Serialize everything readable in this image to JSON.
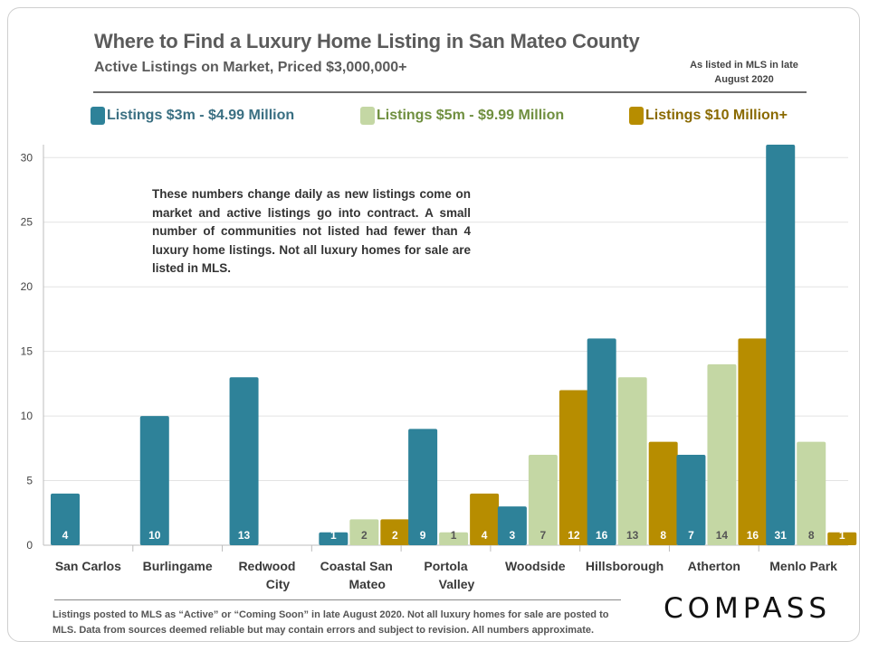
{
  "header": {
    "title": "Where to Find a Luxury Home Listing in San Mateo County",
    "subtitle": "Active Listings on Market, Priced $3,000,000+",
    "source_line1": "As listed in MLS in late",
    "source_line2": "August 2020"
  },
  "note": {
    "text": "These numbers change daily as new listings come on market and active listings go into contract. A small number of communities not listed had fewer than 4 luxury home listings. Not all luxury homes for sale are listed in MLS."
  },
  "footer": {
    "footnote": "Listings posted to MLS as “Active” or “Coming Soon” in late August 2020. Not all luxury homes for sale are posted to MLS. Data from sources deemed reliable but may contain errors and subject to revision. All numbers approximate.",
    "logo": "COMPASS"
  },
  "colors": {
    "series_1": "#2e8299",
    "series_2": "#c4d7a4",
    "series_3": "#b78d00",
    "label_light": "#ffffff",
    "label_dark": "#555555"
  },
  "chart_data": {
    "type": "bar",
    "categories": [
      [
        "San Carlos"
      ],
      [
        "Burlingame"
      ],
      [
        "Redwood",
        "City"
      ],
      [
        "Coastal San",
        "Mateo"
      ],
      [
        "Portola",
        "Valley"
      ],
      [
        "Woodside"
      ],
      [
        "Hillsborough"
      ],
      [
        "Atherton"
      ],
      [
        "Menlo Park"
      ]
    ],
    "series": [
      {
        "name": "Listings $3m - $4.99 Million",
        "values": [
          4,
          10,
          13,
          1,
          9,
          3,
          16,
          7,
          31
        ]
      },
      {
        "name": "Listings $5m - $9.99 Million",
        "values": [
          null,
          null,
          null,
          2,
          1,
          7,
          13,
          14,
          8
        ]
      },
      {
        "name": "Listings $10 Million+",
        "values": [
          null,
          null,
          null,
          2,
          4,
          12,
          8,
          16,
          1
        ]
      }
    ],
    "ylim": [
      0,
      31
    ],
    "yticks": [
      0,
      5,
      10,
      15,
      20,
      25,
      30
    ],
    "grid": true,
    "legend_position": "top"
  }
}
